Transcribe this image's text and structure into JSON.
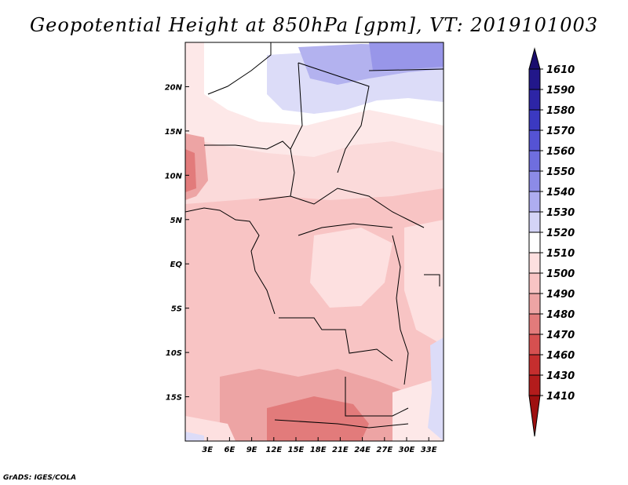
{
  "title": "Geopotential Height at 850hPa [gpm], VT: 2019101003",
  "credit": "GrADS: IGES/COLA",
  "map": {
    "lon_range": [
      0,
      35
    ],
    "lat_range": [
      -20,
      25
    ],
    "lon_ticks": [
      "3E",
      "6E",
      "9E",
      "12E",
      "15E",
      "18E",
      "21E",
      "24E",
      "27E",
      "30E",
      "33E"
    ],
    "lat_ticks": [
      "20N",
      "15N",
      "10N",
      "5N",
      "EQ",
      "5S",
      "10S",
      "15S"
    ]
  },
  "colorbar": {
    "levels": [
      "1610",
      "1590",
      "1580",
      "1570",
      "1560",
      "1550",
      "1540",
      "1530",
      "1520",
      "1510",
      "1500",
      "1490",
      "1480",
      "1470",
      "1460",
      "1430",
      "1410"
    ],
    "colors": [
      "#1a0d6e",
      "#22178a",
      "#2d25a6",
      "#3b39c1",
      "#5553d4",
      "#6f6edf",
      "#8c8be8",
      "#aeadf0",
      "#d4d4f7",
      "#ffffff",
      "#fde0e0",
      "#f8c4c4",
      "#eda4a4",
      "#e27b7b",
      "#d65050",
      "#c52e2e",
      "#b31c1c",
      "#9e1010"
    ]
  }
}
